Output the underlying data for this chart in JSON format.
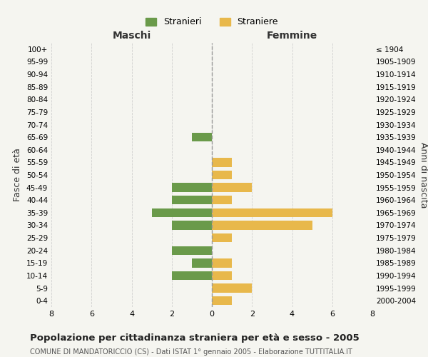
{
  "age_groups": [
    "100+",
    "95-99",
    "90-94",
    "85-89",
    "80-84",
    "75-79",
    "70-74",
    "65-69",
    "60-64",
    "55-59",
    "50-54",
    "45-49",
    "40-44",
    "35-39",
    "30-34",
    "25-29",
    "20-24",
    "15-19",
    "10-14",
    "5-9",
    "0-4"
  ],
  "birth_years": [
    "≤ 1904",
    "1905-1909",
    "1910-1914",
    "1915-1919",
    "1920-1924",
    "1925-1929",
    "1930-1934",
    "1935-1939",
    "1940-1944",
    "1945-1949",
    "1950-1954",
    "1955-1959",
    "1960-1964",
    "1965-1969",
    "1970-1974",
    "1975-1979",
    "1980-1984",
    "1985-1989",
    "1990-1994",
    "1995-1999",
    "2000-2004"
  ],
  "maschi": [
    0,
    0,
    0,
    0,
    0,
    0,
    0,
    1,
    0,
    0,
    0,
    2,
    2,
    3,
    2,
    0,
    2,
    1,
    2,
    0,
    0
  ],
  "femmine": [
    0,
    0,
    0,
    0,
    0,
    0,
    0,
    0,
    0,
    1,
    1,
    2,
    1,
    6,
    5,
    1,
    0,
    1,
    1,
    2,
    1
  ],
  "color_maschi": "#6a9a4a",
  "color_femmine": "#e8b84b",
  "title": "Popolazione per cittadinanza straniera per età e sesso - 2005",
  "subtitle": "COMUNE DI MANDATORICCIO (CS) - Dati ISTAT 1° gennaio 2005 - Elaborazione TUTTITALIA.IT",
  "xlabel_left": "Maschi",
  "xlabel_right": "Femmine",
  "ylabel_left": "Fasce di età",
  "ylabel_right": "Anni di nascita",
  "legend_maschi": "Stranieri",
  "legend_femmine": "Straniere",
  "xlim": 8,
  "background_color": "#f5f5f0",
  "grid_color": "#cccccc"
}
